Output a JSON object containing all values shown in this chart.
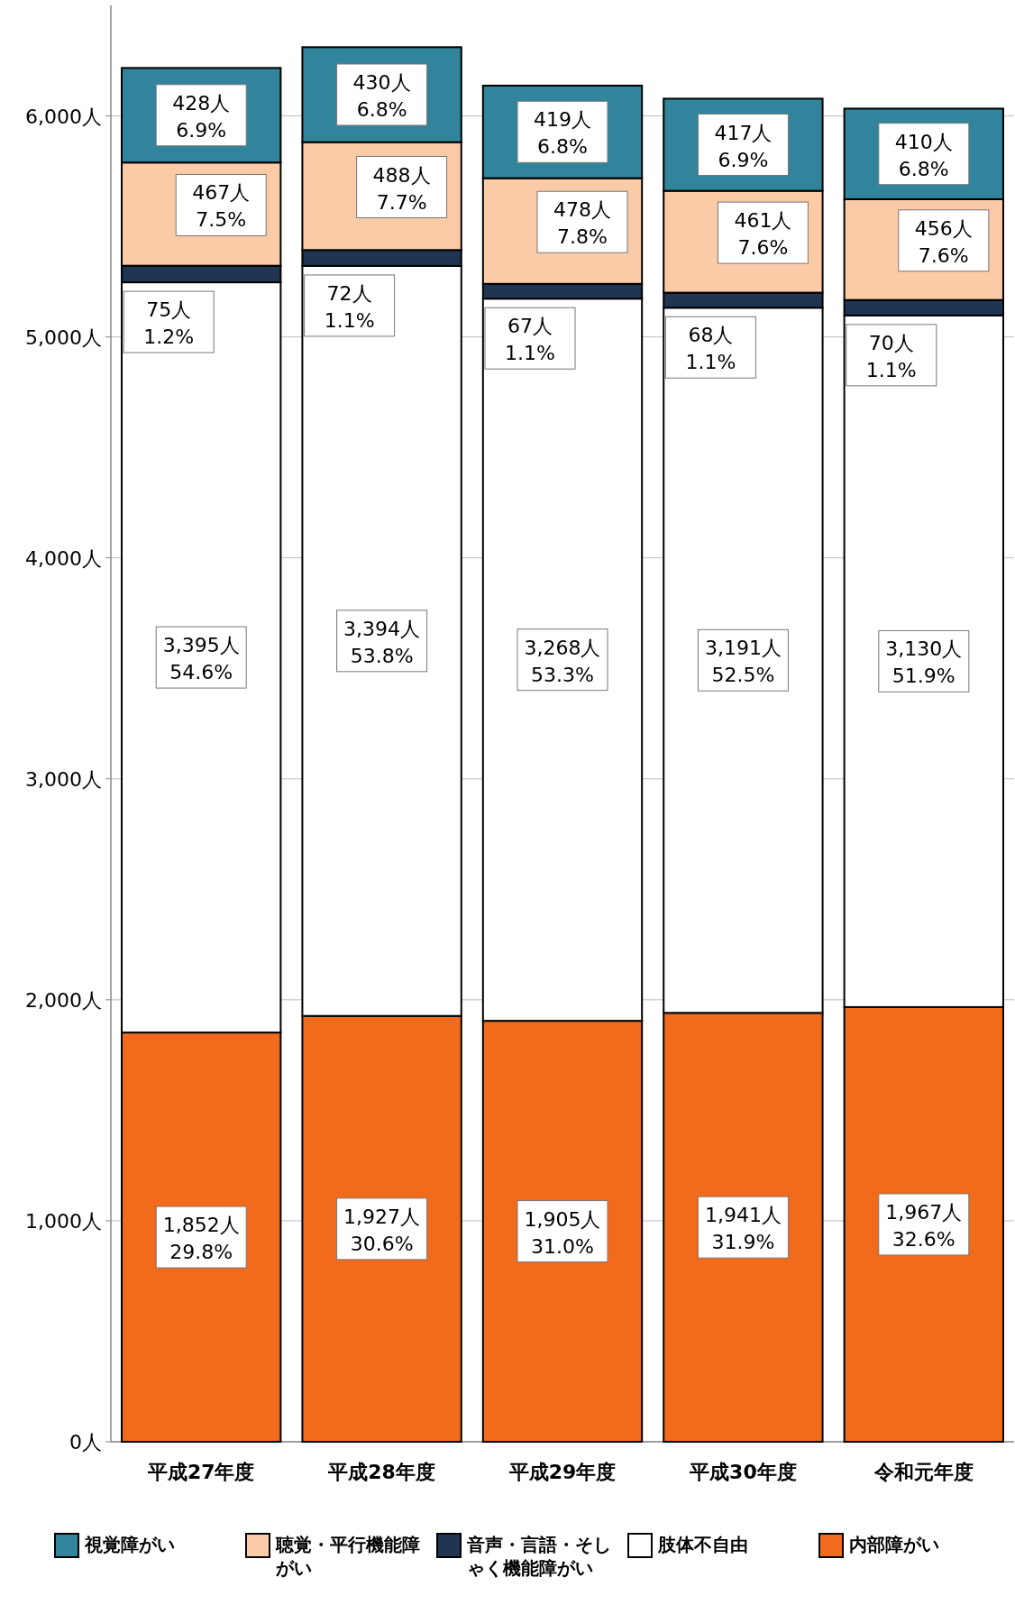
{
  "chart_data": {
    "type": "bar",
    "stacked": true,
    "categories": [
      "平成27年度",
      "平成28年度",
      "平成29年度",
      "平成30年度",
      "令和元年度"
    ],
    "series": [
      {
        "name": "内部障がい",
        "color": "#f26b1d",
        "values": [
          1852,
          1927,
          1905,
          1941,
          1967
        ],
        "value_labels": [
          "1,852人\n29.8%",
          "1,927人\n30.6%",
          "1,905人\n31.0%",
          "1,941人\n31.9%",
          "1,967人\n32.6%"
        ]
      },
      {
        "name": "肢体不自由",
        "color": "#ffffff",
        "values": [
          3395,
          3394,
          3268,
          3191,
          3130
        ],
        "value_labels": [
          "3,395人\n54.6%",
          "3,394人\n53.8%",
          "3,268人\n53.3%",
          "3,191人\n52.5%",
          "3,130人\n51.9%"
        ]
      },
      {
        "name": "音声・言語・そしゃく機能障がい",
        "color": "#1f3552",
        "values": [
          75,
          72,
          67,
          68,
          70
        ],
        "value_labels": [
          "75人\n1.2%",
          "72人\n1.1%",
          "67人\n1.1%",
          "68人\n1.1%",
          "70人\n1.1%"
        ]
      },
      {
        "name": "聴覚・平行機能障がい",
        "color": "#fbcba7",
        "values": [
          467,
          488,
          478,
          461,
          456
        ],
        "value_labels": [
          "467人\n7.5%",
          "488人\n7.7%",
          "478人\n7.8%",
          "461人\n7.6%",
          "456人\n7.6%"
        ]
      },
      {
        "name": "視覚障がい",
        "color": "#31849b",
        "values": [
          428,
          430,
          419,
          417,
          410
        ],
        "value_labels": [
          "428人\n6.9%",
          "430人\n6.8%",
          "419人\n6.8%",
          "417人\n6.9%",
          "410人\n6.8%"
        ]
      }
    ],
    "ylim": [
      0,
      6500
    ],
    "yticks": [
      {
        "value": 0,
        "label": "0人"
      },
      {
        "value": 1000,
        "label": "1,000人"
      },
      {
        "value": 2000,
        "label": "2,000人"
      },
      {
        "value": 3000,
        "label": "3,000人"
      },
      {
        "value": 4000,
        "label": "4,000人"
      },
      {
        "value": 5000,
        "label": "5,000人"
      },
      {
        "value": 6000,
        "label": "6,000人"
      }
    ],
    "grid": "y",
    "legend": "bottom"
  }
}
